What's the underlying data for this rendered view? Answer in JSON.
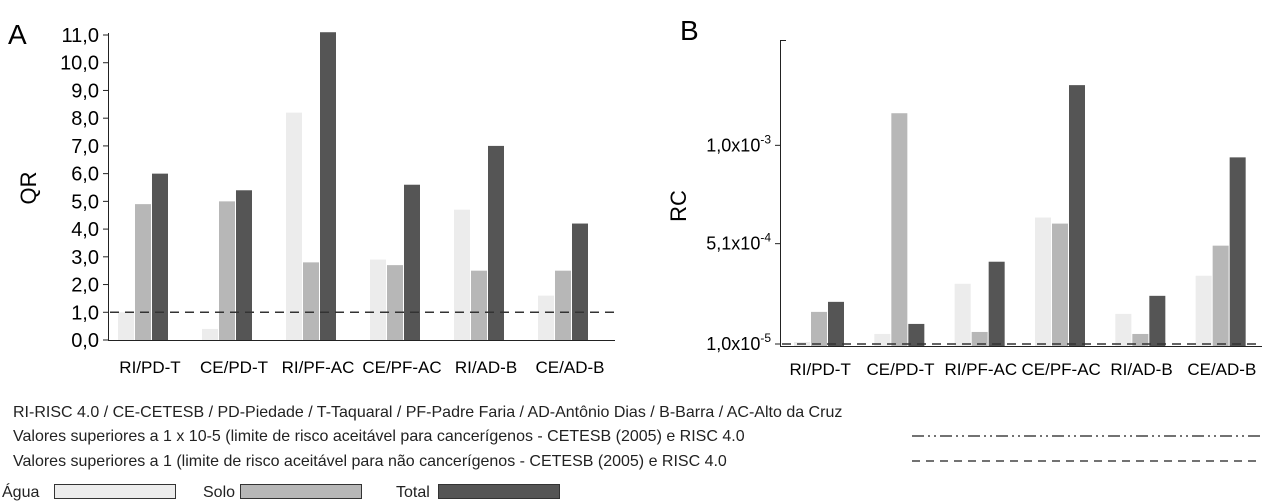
{
  "colors": {
    "agua": "#ececec",
    "solo": "#b7b7b7",
    "total": "#555555",
    "axis": "#222222"
  },
  "chart_data": [
    {
      "type": "bar",
      "panel_label": "A",
      "ylabel": "QR",
      "categories": [
        "RI/PD-T",
        "CE/PD-T",
        "RI/PF-AC",
        "CE/PF-AC",
        "RI/AD-B",
        "CE/AD-B"
      ],
      "series": [
        {
          "name": "Água",
          "values": [
            1.0,
            0.4,
            8.2,
            2.9,
            4.7,
            1.6
          ]
        },
        {
          "name": "Solo",
          "values": [
            4.9,
            5.0,
            2.8,
            2.7,
            2.5,
            2.5
          ]
        },
        {
          "name": "Total",
          "values": [
            6.0,
            5.4,
            11.1,
            5.6,
            7.0,
            4.2
          ]
        }
      ],
      "ylim": [
        0,
        11
      ],
      "yticks": [
        0,
        1,
        2,
        3,
        4,
        5,
        6,
        7,
        8,
        9,
        10,
        11
      ],
      "ytick_labels": [
        "0,0",
        "1,0",
        "2,0",
        "3,0",
        "4,0",
        "5,0",
        "6,0",
        "7,0",
        "8,0",
        "9,0",
        "10,0",
        "11,0"
      ],
      "reference_line": 1.0
    },
    {
      "type": "bar",
      "panel_label": "B",
      "ylabel": "RC",
      "categories": [
        "RI/PD-T",
        "CE/PD-T",
        "RI/PF-AC",
        "CE/PF-AC",
        "RI/AD-B",
        "CE/AD-B"
      ],
      "series": [
        {
          "name": "Água",
          "values": [
            2e-05,
            6e-05,
            0.00031,
            0.00064,
            0.00016,
            0.00035
          ]
        },
        {
          "name": "Solo",
          "values": [
            0.00017,
            0.00116,
            7e-05,
            0.00061,
            6e-05,
            0.0005
          ]
        },
        {
          "name": "Total",
          "values": [
            0.00022,
            0.00011,
            0.00042,
            0.0013,
            0.00025,
            0.00094
          ]
        }
      ],
      "ylim": [
        0,
        0.0015
      ],
      "yticks": [
        1e-05,
        0.00051,
        0.001
      ],
      "ytick_labels": [
        {
          "base": "1,0x10",
          "exp": "-5"
        },
        {
          "base": "5,1x10",
          "exp": "-4"
        },
        {
          "base": "1,0x10",
          "exp": "-3"
        }
      ],
      "reference_line": 1e-05
    }
  ],
  "captions": {
    "abbreviations": "RI-RISC 4.0 / CE-CETESB / PD-Piedade / T-Taquaral / PF-Padre Faria / AD-Antônio Dias / B-Barra / AC-Alto da Cruz",
    "cancer_limit": "Valores superiores a 1 x 10-5 (limite de risco aceitável para cancerígenos - CETESB (2005) e RISC 4.0",
    "noncancer_limit": "Valores superiores a 1 (limite de risco aceitável para não cancerígenos - CETESB (2005) e RISC 4.0"
  },
  "legend": {
    "agua": "Água",
    "solo": "Solo",
    "total": "Total"
  }
}
